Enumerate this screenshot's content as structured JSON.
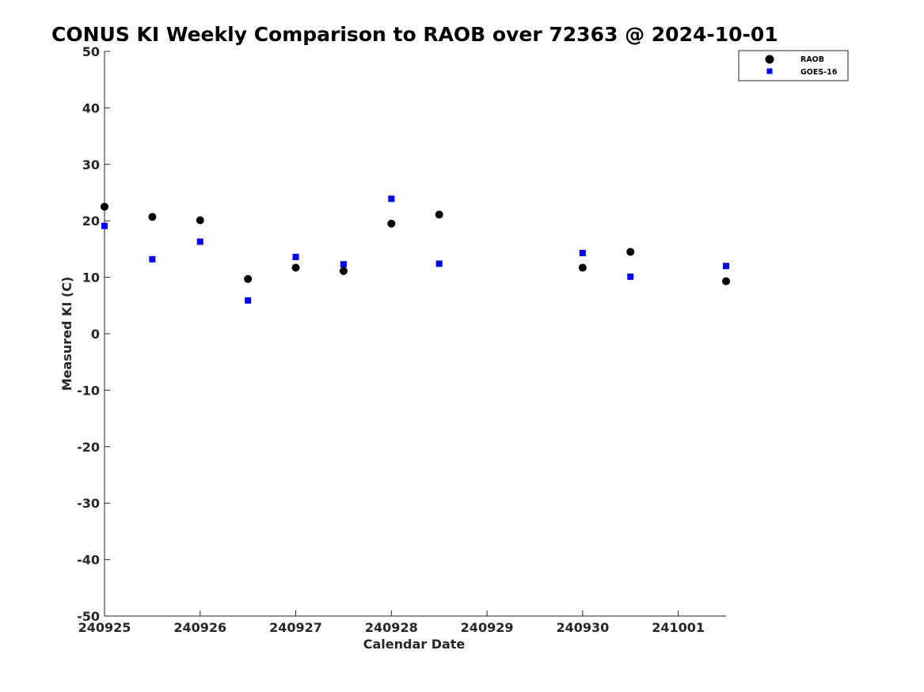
{
  "chart_data": {
    "type": "scatter",
    "title": "CONUS KI Weekly Comparison to RAOB over 72363 @ 2024-10-01",
    "xlabel": "Calendar Date",
    "ylabel": "Measured KI (C)",
    "x_ticks": [
      {
        "value": 0,
        "label": "240925"
      },
      {
        "value": 1,
        "label": "240926"
      },
      {
        "value": 2,
        "label": "240927"
      },
      {
        "value": 3,
        "label": "240928"
      },
      {
        "value": 4,
        "label": "240929"
      },
      {
        "value": 5,
        "label": "240930"
      },
      {
        "value": 6,
        "label": "241001"
      }
    ],
    "y_ticks": [
      50,
      40,
      30,
      20,
      10,
      0,
      -10,
      -20,
      -30,
      -40,
      -50
    ],
    "xlim": [
      0,
      6.5
    ],
    "ylim": [
      -50,
      50
    ],
    "grid": false,
    "legend_position": "top-right",
    "series": [
      {
        "name": "RAOB",
        "marker": "circle",
        "color": "#000000",
        "points": [
          {
            "x": 0.0,
            "y": 22.5
          },
          {
            "x": 0.5,
            "y": 20.7
          },
          {
            "x": 1.0,
            "y": 20.1
          },
          {
            "x": 1.5,
            "y": 9.7
          },
          {
            "x": 2.0,
            "y": 11.7
          },
          {
            "x": 2.5,
            "y": 11.1
          },
          {
            "x": 3.0,
            "y": 19.5
          },
          {
            "x": 3.5,
            "y": 21.1
          },
          {
            "x": 5.0,
            "y": 11.7
          },
          {
            "x": 5.5,
            "y": 14.5
          },
          {
            "x": 6.5,
            "y": 9.3
          }
        ]
      },
      {
        "name": "GOES-16",
        "marker": "square",
        "color": "#0000ff",
        "points": [
          {
            "x": 0.0,
            "y": 19.1
          },
          {
            "x": 0.5,
            "y": 13.2
          },
          {
            "x": 1.0,
            "y": 16.3
          },
          {
            "x": 1.5,
            "y": 5.9
          },
          {
            "x": 2.0,
            "y": 13.6
          },
          {
            "x": 2.5,
            "y": 12.3
          },
          {
            "x": 3.0,
            "y": 23.9
          },
          {
            "x": 3.5,
            "y": 12.4
          },
          {
            "x": 5.0,
            "y": 14.3
          },
          {
            "x": 5.5,
            "y": 10.1
          },
          {
            "x": 6.5,
            "y": 12.0
          }
        ]
      }
    ]
  }
}
